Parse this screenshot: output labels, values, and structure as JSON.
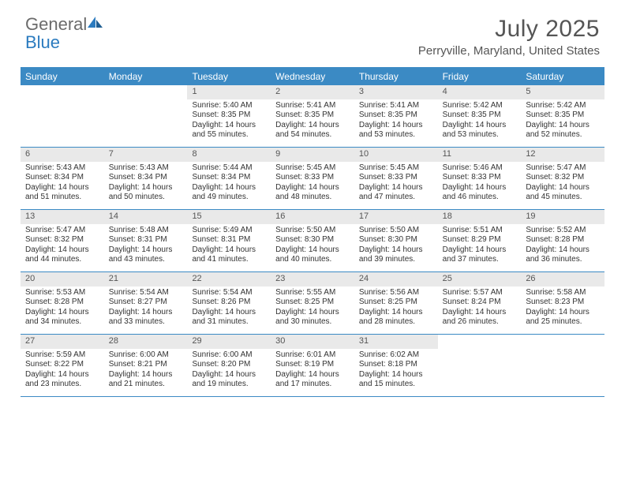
{
  "logo": {
    "word1": "General",
    "word2": "Blue"
  },
  "title": "July 2025",
  "location": "Perryville, Maryland, United States",
  "colors": {
    "header_bg": "#3b8ac4",
    "header_text": "#ffffff",
    "daynum_bg": "#e9e9e9",
    "body_text": "#333333",
    "title_text": "#555555",
    "logo_gray": "#6b6b6b",
    "logo_blue": "#2b7bbf",
    "row_border": "#3b8ac4"
  },
  "typography": {
    "title_fontsize": 30,
    "location_fontsize": 15,
    "dayheader_fontsize": 12,
    "daynum_fontsize": 11,
    "body_fontsize": 10
  },
  "day_headers": [
    "Sunday",
    "Monday",
    "Tuesday",
    "Wednesday",
    "Thursday",
    "Friday",
    "Saturday"
  ],
  "weeks": [
    [
      {
        "num": "",
        "sunrise": "",
        "sunset": "",
        "daylight": ""
      },
      {
        "num": "",
        "sunrise": "",
        "sunset": "",
        "daylight": ""
      },
      {
        "num": "1",
        "sunrise": "Sunrise: 5:40 AM",
        "sunset": "Sunset: 8:35 PM",
        "daylight": "Daylight: 14 hours and 55 minutes."
      },
      {
        "num": "2",
        "sunrise": "Sunrise: 5:41 AM",
        "sunset": "Sunset: 8:35 PM",
        "daylight": "Daylight: 14 hours and 54 minutes."
      },
      {
        "num": "3",
        "sunrise": "Sunrise: 5:41 AM",
        "sunset": "Sunset: 8:35 PM",
        "daylight": "Daylight: 14 hours and 53 minutes."
      },
      {
        "num": "4",
        "sunrise": "Sunrise: 5:42 AM",
        "sunset": "Sunset: 8:35 PM",
        "daylight": "Daylight: 14 hours and 53 minutes."
      },
      {
        "num": "5",
        "sunrise": "Sunrise: 5:42 AM",
        "sunset": "Sunset: 8:35 PM",
        "daylight": "Daylight: 14 hours and 52 minutes."
      }
    ],
    [
      {
        "num": "6",
        "sunrise": "Sunrise: 5:43 AM",
        "sunset": "Sunset: 8:34 PM",
        "daylight": "Daylight: 14 hours and 51 minutes."
      },
      {
        "num": "7",
        "sunrise": "Sunrise: 5:43 AM",
        "sunset": "Sunset: 8:34 PM",
        "daylight": "Daylight: 14 hours and 50 minutes."
      },
      {
        "num": "8",
        "sunrise": "Sunrise: 5:44 AM",
        "sunset": "Sunset: 8:34 PM",
        "daylight": "Daylight: 14 hours and 49 minutes."
      },
      {
        "num": "9",
        "sunrise": "Sunrise: 5:45 AM",
        "sunset": "Sunset: 8:33 PM",
        "daylight": "Daylight: 14 hours and 48 minutes."
      },
      {
        "num": "10",
        "sunrise": "Sunrise: 5:45 AM",
        "sunset": "Sunset: 8:33 PM",
        "daylight": "Daylight: 14 hours and 47 minutes."
      },
      {
        "num": "11",
        "sunrise": "Sunrise: 5:46 AM",
        "sunset": "Sunset: 8:33 PM",
        "daylight": "Daylight: 14 hours and 46 minutes."
      },
      {
        "num": "12",
        "sunrise": "Sunrise: 5:47 AM",
        "sunset": "Sunset: 8:32 PM",
        "daylight": "Daylight: 14 hours and 45 minutes."
      }
    ],
    [
      {
        "num": "13",
        "sunrise": "Sunrise: 5:47 AM",
        "sunset": "Sunset: 8:32 PM",
        "daylight": "Daylight: 14 hours and 44 minutes."
      },
      {
        "num": "14",
        "sunrise": "Sunrise: 5:48 AM",
        "sunset": "Sunset: 8:31 PM",
        "daylight": "Daylight: 14 hours and 43 minutes."
      },
      {
        "num": "15",
        "sunrise": "Sunrise: 5:49 AM",
        "sunset": "Sunset: 8:31 PM",
        "daylight": "Daylight: 14 hours and 41 minutes."
      },
      {
        "num": "16",
        "sunrise": "Sunrise: 5:50 AM",
        "sunset": "Sunset: 8:30 PM",
        "daylight": "Daylight: 14 hours and 40 minutes."
      },
      {
        "num": "17",
        "sunrise": "Sunrise: 5:50 AM",
        "sunset": "Sunset: 8:30 PM",
        "daylight": "Daylight: 14 hours and 39 minutes."
      },
      {
        "num": "18",
        "sunrise": "Sunrise: 5:51 AM",
        "sunset": "Sunset: 8:29 PM",
        "daylight": "Daylight: 14 hours and 37 minutes."
      },
      {
        "num": "19",
        "sunrise": "Sunrise: 5:52 AM",
        "sunset": "Sunset: 8:28 PM",
        "daylight": "Daylight: 14 hours and 36 minutes."
      }
    ],
    [
      {
        "num": "20",
        "sunrise": "Sunrise: 5:53 AM",
        "sunset": "Sunset: 8:28 PM",
        "daylight": "Daylight: 14 hours and 34 minutes."
      },
      {
        "num": "21",
        "sunrise": "Sunrise: 5:54 AM",
        "sunset": "Sunset: 8:27 PM",
        "daylight": "Daylight: 14 hours and 33 minutes."
      },
      {
        "num": "22",
        "sunrise": "Sunrise: 5:54 AM",
        "sunset": "Sunset: 8:26 PM",
        "daylight": "Daylight: 14 hours and 31 minutes."
      },
      {
        "num": "23",
        "sunrise": "Sunrise: 5:55 AM",
        "sunset": "Sunset: 8:25 PM",
        "daylight": "Daylight: 14 hours and 30 minutes."
      },
      {
        "num": "24",
        "sunrise": "Sunrise: 5:56 AM",
        "sunset": "Sunset: 8:25 PM",
        "daylight": "Daylight: 14 hours and 28 minutes."
      },
      {
        "num": "25",
        "sunrise": "Sunrise: 5:57 AM",
        "sunset": "Sunset: 8:24 PM",
        "daylight": "Daylight: 14 hours and 26 minutes."
      },
      {
        "num": "26",
        "sunrise": "Sunrise: 5:58 AM",
        "sunset": "Sunset: 8:23 PM",
        "daylight": "Daylight: 14 hours and 25 minutes."
      }
    ],
    [
      {
        "num": "27",
        "sunrise": "Sunrise: 5:59 AM",
        "sunset": "Sunset: 8:22 PM",
        "daylight": "Daylight: 14 hours and 23 minutes."
      },
      {
        "num": "28",
        "sunrise": "Sunrise: 6:00 AM",
        "sunset": "Sunset: 8:21 PM",
        "daylight": "Daylight: 14 hours and 21 minutes."
      },
      {
        "num": "29",
        "sunrise": "Sunrise: 6:00 AM",
        "sunset": "Sunset: 8:20 PM",
        "daylight": "Daylight: 14 hours and 19 minutes."
      },
      {
        "num": "30",
        "sunrise": "Sunrise: 6:01 AM",
        "sunset": "Sunset: 8:19 PM",
        "daylight": "Daylight: 14 hours and 17 minutes."
      },
      {
        "num": "31",
        "sunrise": "Sunrise: 6:02 AM",
        "sunset": "Sunset: 8:18 PM",
        "daylight": "Daylight: 14 hours and 15 minutes."
      },
      {
        "num": "",
        "sunrise": "",
        "sunset": "",
        "daylight": ""
      },
      {
        "num": "",
        "sunrise": "",
        "sunset": "",
        "daylight": ""
      }
    ]
  ]
}
